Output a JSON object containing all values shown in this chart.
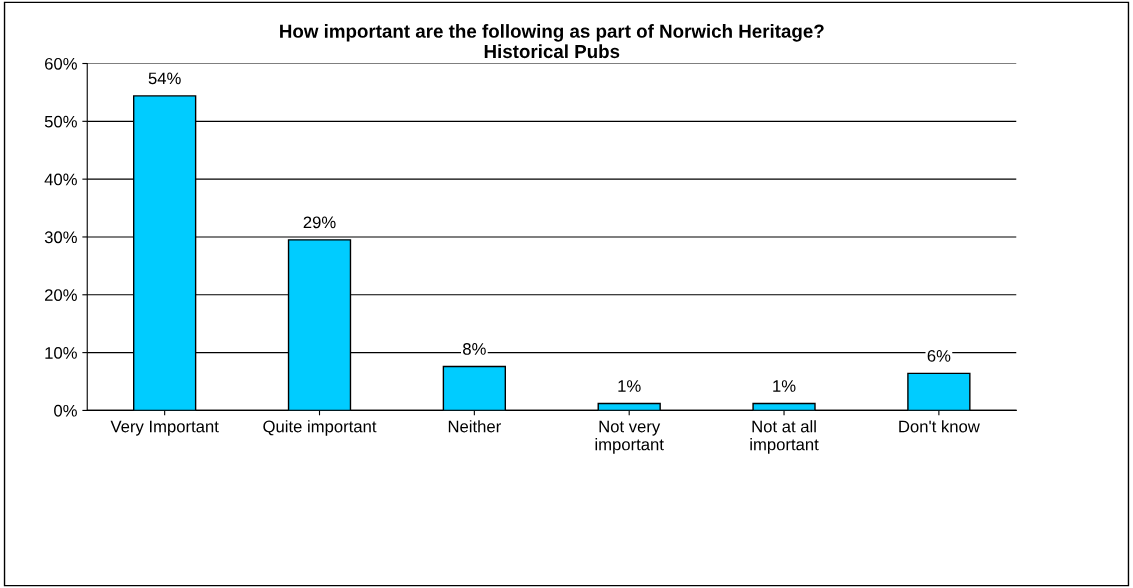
{
  "chart_data": {
    "type": "bar",
    "title": "How important are the following as part of Norwich Heritage?\nHistorical Pubs",
    "categories": [
      "Very Important",
      "Quite important",
      "Neither",
      "Not very\nimportant",
      "Not at all\nimportant",
      "Don't know"
    ],
    "values": [
      54.4,
      29.5,
      7.6,
      1.2,
      1.2,
      6.4
    ],
    "value_labels": [
      "54%",
      "29%",
      "8%",
      "1%",
      "1%",
      "6%"
    ],
    "color": "#00ccff",
    "ylim": [
      0,
      60
    ],
    "yticks": [
      {
        "value": 0,
        "label": "0%"
      },
      {
        "value": 10,
        "label": "10%"
      },
      {
        "value": 20,
        "label": "20%"
      },
      {
        "value": 30,
        "label": "30%"
      },
      {
        "value": 40,
        "label": "40%"
      },
      {
        "value": 50,
        "label": "50%"
      },
      {
        "value": 60,
        "label": "60%"
      }
    ],
    "grid": "y"
  }
}
